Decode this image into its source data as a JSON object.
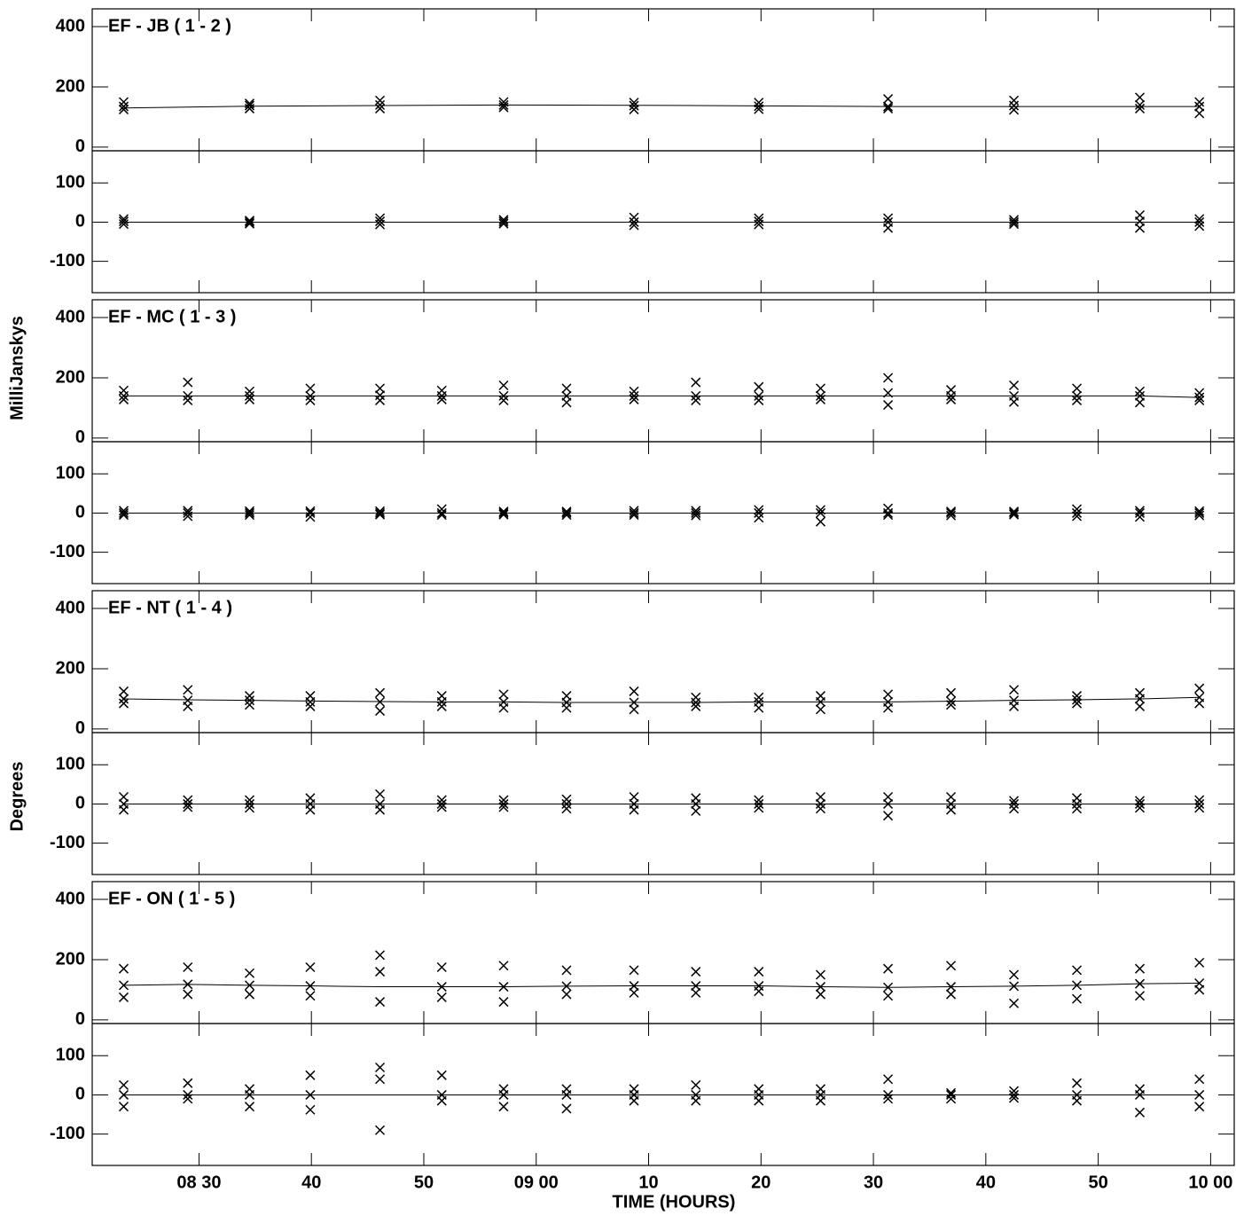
{
  "chart_data": {
    "type": "scatter",
    "x_label": "TIME (HOURS)",
    "amp_label": "MilliJanskys",
    "phase_label": "Degrees",
    "xlim": [
      20.5,
      122.1
    ],
    "xticks": [
      {
        "value": 30,
        "label": "08 30"
      },
      40,
      50,
      {
        "value": 60,
        "label": "09 00"
      },
      {
        "value": 70,
        "label": "10"
      },
      {
        "value": 80,
        "label": "20"
      },
      {
        "value": 90,
        "label": "30"
      },
      {
        "value": 100,
        "label": "40"
      },
      {
        "value": 110,
        "label": "50"
      },
      {
        "value": 120,
        "label": "10 00"
      }
    ],
    "amp_ylim": [
      -12,
      459
    ],
    "amp_yticks": [
      0,
      200,
      400
    ],
    "phase_ylim": [
      -180,
      182
    ],
    "phase_yticks": [
      -100,
      0,
      100
    ],
    "baselines": [
      {
        "title": "EF - JB ( 1 - 2 )",
        "x": [
          23.3,
          34.5,
          46.1,
          57.1,
          68.7,
          79.8,
          91.3,
          102.5,
          113.7,
          119.0
        ],
        "amplitude": {
          "model": [
            130,
            136,
            138,
            140,
            139,
            137,
            135,
            135,
            135,
            135
          ],
          "points": [
            [
              125,
              150,
              135
            ],
            [
              128,
              145,
              138
            ],
            [
              128,
              155,
              140
            ],
            [
              132,
              150,
              140
            ],
            [
              125,
              148,
              138
            ],
            [
              126,
              148,
              136
            ],
            [
              128,
              160,
              135
            ],
            [
              124,
              155,
              138
            ],
            [
              128,
              165,
              140
            ],
            [
              112,
              150,
              135
            ]
          ]
        },
        "phase": {
          "model": [
            0,
            0,
            0,
            0,
            0,
            0,
            0,
            0,
            0,
            0
          ],
          "points": [
            [
              -5,
              8,
              2
            ],
            [
              -4,
              4,
              0
            ],
            [
              -6,
              10,
              2
            ],
            [
              -4,
              6,
              1
            ],
            [
              -8,
              12,
              0
            ],
            [
              -6,
              10,
              2
            ],
            [
              -15,
              10,
              0
            ],
            [
              -5,
              6,
              0
            ],
            [
              -15,
              18,
              2
            ],
            [
              -10,
              8,
              0
            ]
          ]
        }
      },
      {
        "title": "EF - MC ( 1 - 3 )",
        "x": [
          23.3,
          29.0,
          34.5,
          39.9,
          46.1,
          51.6,
          57.1,
          62.7,
          68.7,
          74.2,
          79.8,
          85.3,
          91.3,
          96.9,
          102.5,
          108.1,
          113.7,
          119.0
        ],
        "amplitude": {
          "model": [
            140,
            140,
            140,
            140,
            140,
            140,
            140,
            140,
            140,
            140,
            140,
            140,
            140,
            140,
            140,
            140,
            140,
            135
          ],
          "points": [
            [
              128,
              158,
              140
            ],
            [
              125,
              185,
              140
            ],
            [
              128,
              155,
              140
            ],
            [
              125,
              165,
              140
            ],
            [
              125,
              165,
              142
            ],
            [
              128,
              158,
              140
            ],
            [
              125,
              175,
              140
            ],
            [
              118,
              165,
              140
            ],
            [
              128,
              155,
              140
            ],
            [
              125,
              185,
              140
            ],
            [
              125,
              170,
              140
            ],
            [
              128,
              165,
              140
            ],
            [
              110,
              200,
              150
            ],
            [
              128,
              160,
              140
            ],
            [
              120,
              175,
              140
            ],
            [
              125,
              165,
              140
            ],
            [
              118,
              155,
              140
            ],
            [
              125,
              150,
              135
            ]
          ]
        },
        "phase": {
          "model": [
            0,
            0,
            0,
            0,
            0,
            0,
            0,
            0,
            0,
            0,
            0,
            0,
            0,
            0,
            0,
            0,
            0,
            0
          ],
          "points": [
            [
              -5,
              6,
              0
            ],
            [
              -8,
              6,
              0
            ],
            [
              -5,
              5,
              0
            ],
            [
              -10,
              5,
              0
            ],
            [
              -4,
              5,
              0
            ],
            [
              -5,
              10,
              0
            ],
            [
              -4,
              4,
              0
            ],
            [
              -5,
              4,
              0
            ],
            [
              -5,
              6,
              0
            ],
            [
              -6,
              6,
              0
            ],
            [
              -12,
              8,
              0
            ],
            [
              -22,
              8,
              0
            ],
            [
              -5,
              12,
              0
            ],
            [
              -6,
              4,
              0
            ],
            [
              -4,
              4,
              0
            ],
            [
              -8,
              10,
              0
            ],
            [
              -10,
              6,
              0
            ],
            [
              -6,
              5,
              0
            ]
          ]
        }
      },
      {
        "title": "EF - NT ( 1 - 4 )",
        "x": [
          23.3,
          29.0,
          34.5,
          39.9,
          46.1,
          51.6,
          57.1,
          62.7,
          68.7,
          74.2,
          79.8,
          85.3,
          91.3,
          96.9,
          102.5,
          108.1,
          113.7,
          119.0
        ],
        "amplitude": {
          "model": [
            100,
            97,
            95,
            93,
            91,
            90,
            90,
            88,
            88,
            88,
            90,
            90,
            90,
            92,
            95,
            97,
            100,
            105
          ],
          "points": [
            [
              85,
              125,
              100
            ],
            [
              75,
              130,
              95
            ],
            [
              80,
              110,
              95
            ],
            [
              75,
              110,
              90
            ],
            [
              60,
              120,
              90
            ],
            [
              75,
              110,
              90
            ],
            [
              70,
              115,
              90
            ],
            [
              70,
              110,
              88
            ],
            [
              65,
              125,
              88
            ],
            [
              75,
              105,
              88
            ],
            [
              70,
              105,
              90
            ],
            [
              65,
              110,
              90
            ],
            [
              70,
              115,
              90
            ],
            [
              80,
              120,
              92
            ],
            [
              75,
              130,
              95
            ],
            [
              85,
              110,
              97
            ],
            [
              75,
              120,
              100
            ],
            [
              85,
              135,
              105
            ]
          ]
        },
        "phase": {
          "model": [
            0,
            0,
            0,
            0,
            0,
            0,
            0,
            0,
            0,
            0,
            0,
            0,
            0,
            0,
            0,
            0,
            0,
            0
          ],
          "points": [
            [
              -15,
              18,
              0
            ],
            [
              -8,
              10,
              0
            ],
            [
              -10,
              10,
              0
            ],
            [
              -15,
              15,
              0
            ],
            [
              -15,
              25,
              0
            ],
            [
              -8,
              10,
              0
            ],
            [
              -8,
              10,
              0
            ],
            [
              -12,
              12,
              0
            ],
            [
              -15,
              18,
              0
            ],
            [
              -18,
              15,
              0
            ],
            [
              -10,
              10,
              0
            ],
            [
              -12,
              18,
              0
            ],
            [
              -30,
              18,
              0
            ],
            [
              -15,
              18,
              0
            ],
            [
              -12,
              8,
              0
            ],
            [
              -12,
              15,
              0
            ],
            [
              -10,
              8,
              0
            ],
            [
              -10,
              10,
              0
            ]
          ]
        }
      },
      {
        "title": "EF - ON ( 1 - 5 )",
        "x": [
          23.3,
          29.0,
          34.5,
          39.9,
          46.1,
          51.6,
          57.1,
          62.7,
          68.7,
          74.2,
          79.8,
          85.3,
          91.3,
          96.9,
          102.5,
          108.1,
          113.7,
          119.0
        ],
        "amplitude": {
          "model": [
            115,
            118,
            115,
            113,
            110,
            110,
            110,
            112,
            113,
            113,
            113,
            110,
            108,
            110,
            112,
            115,
            120,
            122
          ],
          "points": [
            [
              75,
              170,
              115
            ],
            [
              85,
              175,
              118
            ],
            [
              85,
              155,
              115
            ],
            [
              80,
              175,
              113
            ],
            [
              60,
              215,
              160
            ],
            [
              75,
              175,
              110
            ],
            [
              60,
              180,
              110
            ],
            [
              85,
              165,
              112
            ],
            [
              90,
              165,
              113
            ],
            [
              90,
              160,
              113
            ],
            [
              95,
              160,
              113
            ],
            [
              85,
              150,
              110
            ],
            [
              80,
              170,
              108
            ],
            [
              85,
              180,
              110
            ],
            [
              55,
              150,
              112
            ],
            [
              70,
              165,
              115
            ],
            [
              80,
              170,
              120
            ],
            [
              100,
              190,
              122
            ]
          ]
        },
        "phase": {
          "model": [
            0,
            0,
            0,
            0,
            0,
            0,
            0,
            0,
            0,
            0,
            0,
            0,
            0,
            0,
            0,
            0,
            0,
            0
          ],
          "points": [
            [
              -30,
              25,
              0
            ],
            [
              -10,
              30,
              0
            ],
            [
              -30,
              15,
              0
            ],
            [
              -38,
              50,
              0
            ],
            [
              -90,
              70,
              40
            ],
            [
              -15,
              50,
              0
            ],
            [
              -30,
              15,
              0
            ],
            [
              -35,
              15,
              0
            ],
            [
              -15,
              15,
              0
            ],
            [
              -15,
              25,
              0
            ],
            [
              -15,
              15,
              0
            ],
            [
              -15,
              15,
              0
            ],
            [
              -10,
              40,
              0
            ],
            [
              -10,
              5,
              0
            ],
            [
              -8,
              10,
              0
            ],
            [
              -15,
              30,
              0
            ],
            [
              -45,
              15,
              0
            ],
            [
              -30,
              40,
              0
            ]
          ]
        }
      }
    ]
  }
}
